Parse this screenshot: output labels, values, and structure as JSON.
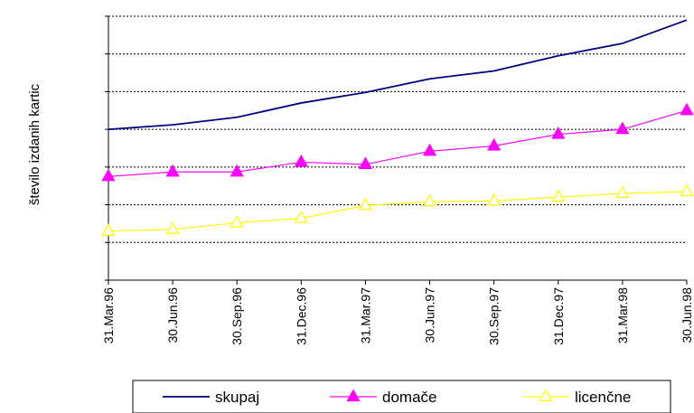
{
  "chart_data": {
    "type": "line",
    "title": "",
    "ylabel": "število izdanih kartic",
    "xlabel": "",
    "x": [
      "31.Mar.96",
      "30.Jun.96",
      "30.Sep.96",
      "31.Dec.96",
      "31.Mar.97",
      "30.Jun.97",
      "30.Sep.97",
      "31.Dec.97",
      "31.Mar.98",
      "30.Jun.98"
    ],
    "ylim": [
      0,
      7
    ],
    "y_tick_labels_visible": false,
    "grid": "horizontal dashed",
    "legend_position": "bottom",
    "series": [
      {
        "name": "skupaj",
        "color": "#000080",
        "marker": "none",
        "values": [
          4.0,
          4.12,
          4.32,
          4.7,
          4.98,
          5.34,
          5.55,
          5.95,
          6.28,
          6.9
        ]
      },
      {
        "name": "domače",
        "color": "#ff00ff",
        "marker": "filled-triangle",
        "values": [
          2.75,
          2.87,
          2.87,
          3.13,
          3.07,
          3.42,
          3.56,
          3.87,
          4.0,
          4.5
        ]
      },
      {
        "name": "licenčne",
        "color": "#ffff00",
        "marker": "hollow-triangle",
        "values": [
          1.3,
          1.35,
          1.52,
          1.64,
          1.98,
          2.08,
          2.1,
          2.2,
          2.3,
          2.35
        ]
      }
    ]
  }
}
